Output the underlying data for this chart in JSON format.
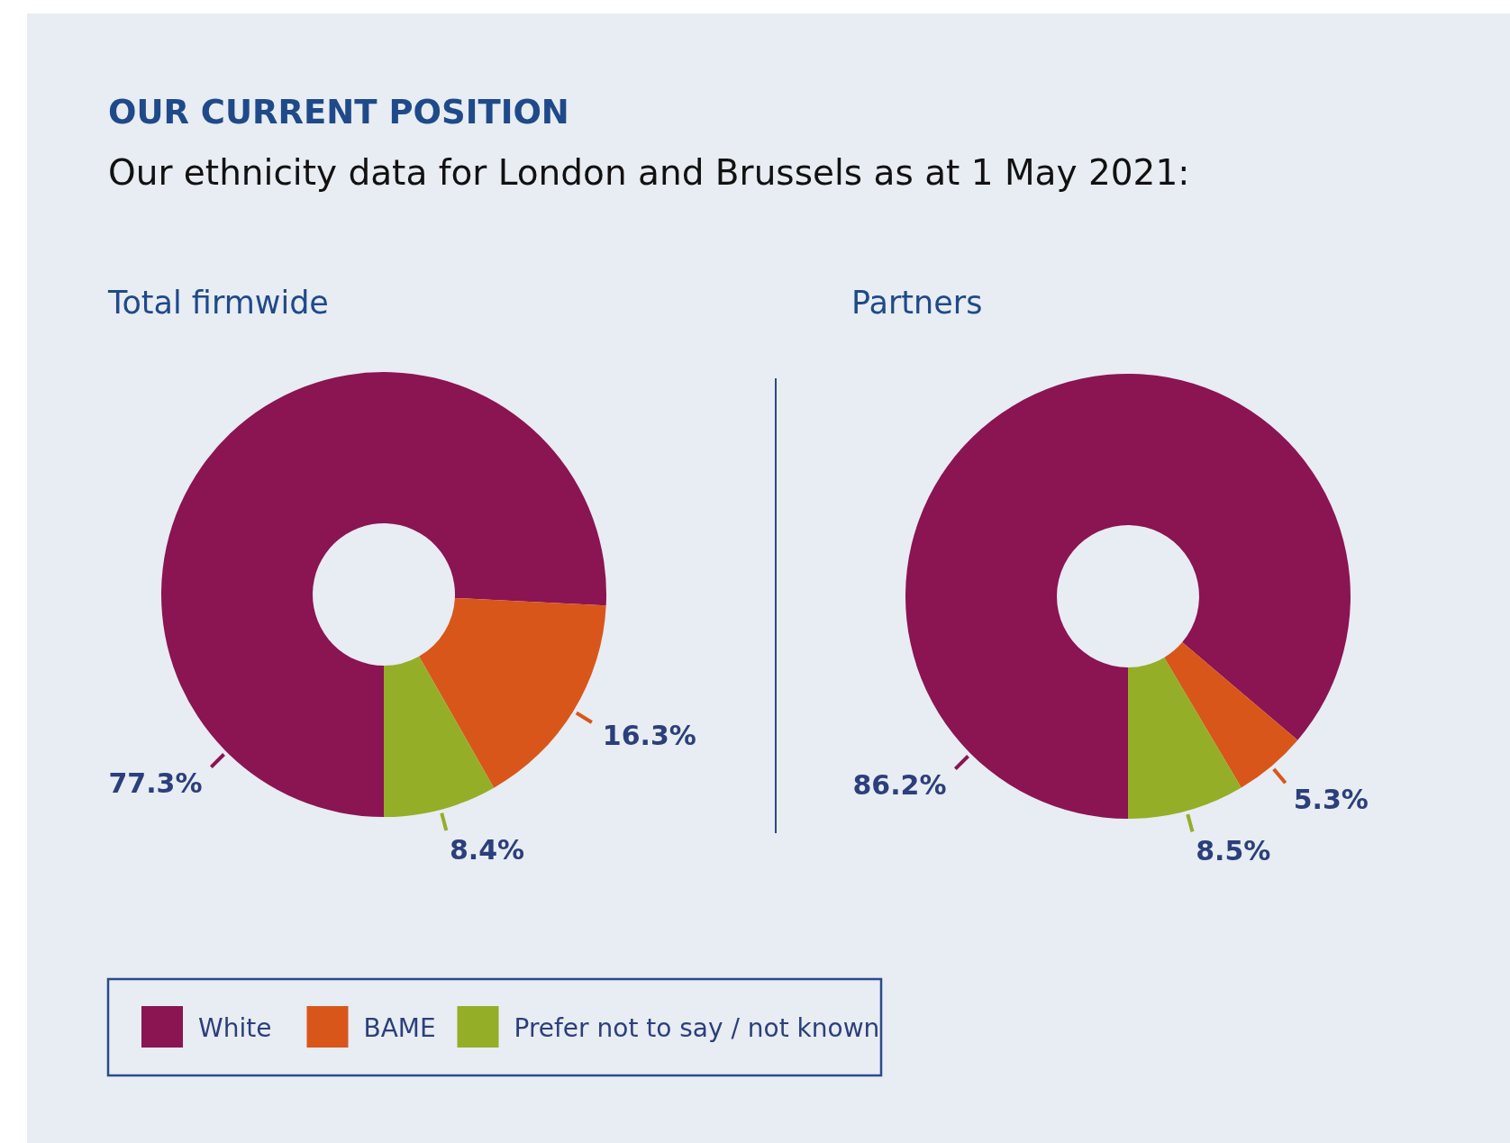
{
  "chart_data": [
    {
      "type": "donut",
      "title": "Total firmwide",
      "annotations": [
        "OUR CURRENT POSITION",
        "Our ethnicity data for London and Brussels as at 1 May 2021:"
      ],
      "categories": [
        "White",
        "BAME",
        "Prefer not to say / not known"
      ],
      "values": [
        77.3,
        16.3,
        8.4
      ],
      "colors": [
        "#8b1452",
        "#d9561a",
        "#94ae27"
      ],
      "value_labels": [
        "77.3%",
        "16.3%",
        "8.4%"
      ],
      "legend": "bottom"
    },
    {
      "type": "donut",
      "title": "Partners",
      "categories": [
        null,
        null,
        null
      ],
      "values": [
        86.2,
        5.3,
        8.5
      ],
      "colors": [
        "#8b1452",
        "#d9561a",
        "#94ae27"
      ],
      "value_labels": [
        "86.2%",
        "5.3%",
        "8.5%"
      ]
    }
  ]
}
